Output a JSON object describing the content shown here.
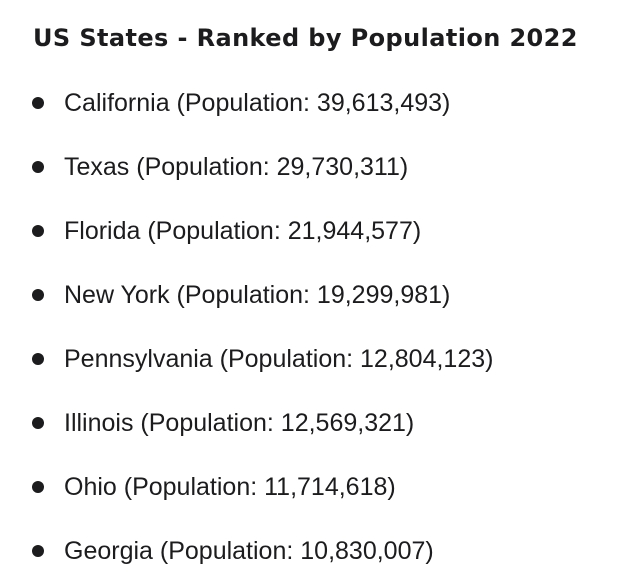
{
  "title": "US States - Ranked by Population 2022",
  "states": [
    {
      "text": "California (Population: 39,613,493)"
    },
    {
      "text": "Texas (Population: 29,730,311)"
    },
    {
      "text": "Florida (Population: 21,944,577)"
    },
    {
      "text": "New York (Population: 19,299,981)"
    },
    {
      "text": "Pennsylvania (Population: 12,804,123)"
    },
    {
      "text": "Illinois (Population: 12,569,321)"
    },
    {
      "text": "Ohio (Population: 11,714,618)"
    },
    {
      "text": "Georgia (Population: 10,830,007)"
    }
  ]
}
